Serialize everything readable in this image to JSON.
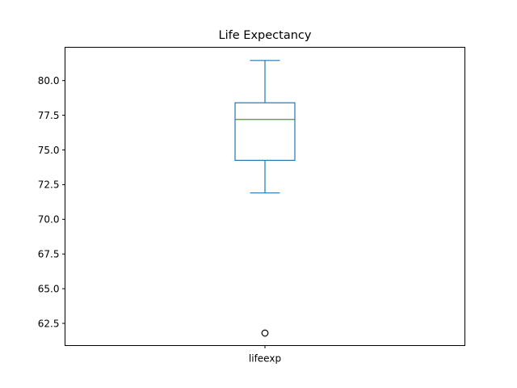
{
  "chart_data": {
    "type": "box",
    "title": "Life Expectancy",
    "xlabel": "",
    "ylabel": "",
    "categories": [
      "lifeexp"
    ],
    "boxes": [
      {
        "name": "lifeexp",
        "whisker_low": 71.9,
        "q1": 74.25,
        "median": 77.2,
        "q3": 78.4,
        "whisker_high": 81.45,
        "outliers": [
          61.8
        ]
      }
    ],
    "ylim": [
      60.9,
      82.4
    ],
    "yticks": [
      62.5,
      65.0,
      67.5,
      70.0,
      72.5,
      75.0,
      77.5,
      80.0
    ],
    "ytick_labels": [
      "62.5",
      "65.0",
      "67.5",
      "70.0",
      "72.5",
      "75.0",
      "77.5",
      "80.0"
    ],
    "grid": false,
    "colors": {
      "box": "#1f77b4",
      "median": "#2ca02c",
      "outlier": "#000000",
      "axes": "#000000"
    }
  }
}
